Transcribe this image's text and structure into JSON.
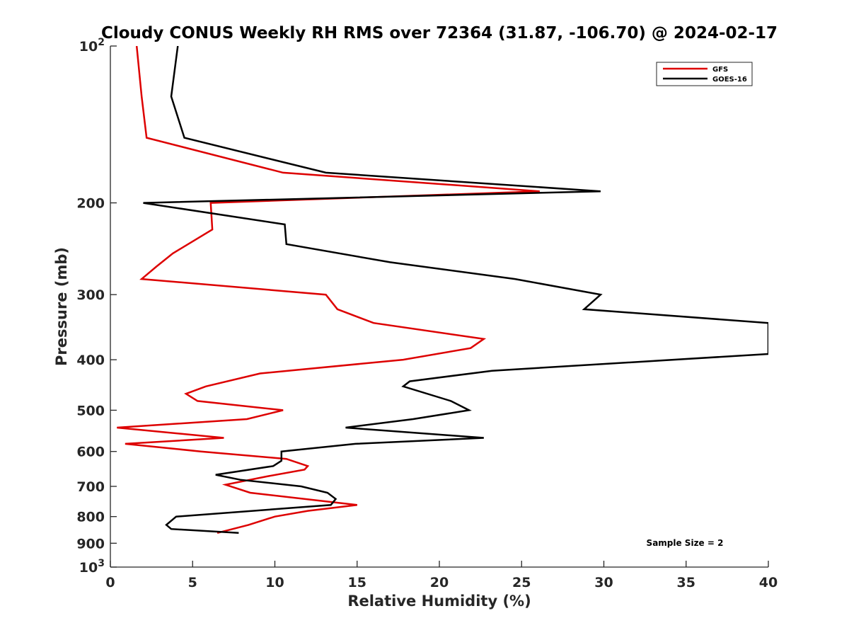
{
  "chart_data": {
    "type": "line",
    "title": "Cloudy CONUS Weekly RH RMS over 72364 (31.87, -106.70) @ 2024-02-17",
    "xlabel": "Relative Humidity (%)",
    "ylabel": "Pressure (mb)",
    "xlim": [
      0,
      40
    ],
    "ylim": [
      100,
      1000
    ],
    "y_scale": "log",
    "y_reversed": true,
    "grid": false,
    "legend_position": "top-right",
    "x_ticks": [
      "0",
      "5",
      "10",
      "15",
      "20",
      "25",
      "30",
      "35",
      "40"
    ],
    "y_ticks": [
      {
        "value": 100,
        "base": "10",
        "exp": "2"
      },
      {
        "value": 200,
        "label": "200"
      },
      {
        "value": 300,
        "label": "300"
      },
      {
        "value": 400,
        "label": "400"
      },
      {
        "value": 500,
        "label": "500"
      },
      {
        "value": 600,
        "label": "600"
      },
      {
        "value": 700,
        "label": "700"
      },
      {
        "value": 800,
        "label": "800"
      },
      {
        "value": 900,
        "label": "900"
      },
      {
        "value": 1000,
        "base": "10",
        "exp": "3"
      }
    ],
    "annotation": "Sample Size = 2",
    "series": [
      {
        "name": "GFS",
        "color": "#dd0000",
        "points": [
          [
            1.6,
            100
          ],
          [
            1.9,
            125
          ],
          [
            2.2,
            150
          ],
          [
            10.5,
            175
          ],
          [
            26.1,
            190
          ],
          [
            6.1,
            200
          ],
          [
            6.2,
            225
          ],
          [
            3.8,
            250
          ],
          [
            2.8,
            265
          ],
          [
            1.9,
            280
          ],
          [
            13.1,
            300
          ],
          [
            13.8,
            320
          ],
          [
            16.0,
            340
          ],
          [
            22.7,
            365
          ],
          [
            21.9,
            380
          ],
          [
            17.8,
            400
          ],
          [
            9.1,
            425
          ],
          [
            5.8,
            450
          ],
          [
            4.6,
            465
          ],
          [
            5.3,
            480
          ],
          [
            10.5,
            500
          ],
          [
            8.3,
            520
          ],
          [
            0.4,
            540
          ],
          [
            6.9,
            565
          ],
          [
            0.9,
            580
          ],
          [
            5.5,
            600
          ],
          [
            10.7,
            620
          ],
          [
            12.0,
            640
          ],
          [
            11.8,
            650
          ],
          [
            9.5,
            670
          ],
          [
            7.0,
            695
          ],
          [
            8.5,
            720
          ],
          [
            15.0,
            760
          ],
          [
            12.0,
            780
          ],
          [
            10.0,
            800
          ],
          [
            8.4,
            830
          ],
          [
            6.5,
            860
          ]
        ]
      },
      {
        "name": "GOES-16",
        "color": "#000000",
        "points": [
          [
            4.1,
            100
          ],
          [
            3.7,
            125
          ],
          [
            4.5,
            150
          ],
          [
            13.1,
            175
          ],
          [
            29.8,
            190
          ],
          [
            2.0,
            200
          ],
          [
            10.6,
            220
          ],
          [
            10.7,
            240
          ],
          [
            17.0,
            260
          ],
          [
            24.6,
            280
          ],
          [
            29.8,
            300
          ],
          [
            28.8,
            320
          ],
          [
            40.0,
            340
          ],
          [
            40.0,
            390
          ],
          [
            23.2,
            420
          ],
          [
            18.2,
            440
          ],
          [
            17.8,
            450
          ],
          [
            20.7,
            480
          ],
          [
            21.8,
            500
          ],
          [
            18.4,
            520
          ],
          [
            14.3,
            540
          ],
          [
            22.7,
            565
          ],
          [
            14.9,
            580
          ],
          [
            10.4,
            600
          ],
          [
            10.4,
            625
          ],
          [
            9.9,
            640
          ],
          [
            6.4,
            665
          ],
          [
            7.9,
            680
          ],
          [
            11.6,
            700
          ],
          [
            13.2,
            720
          ],
          [
            13.7,
            740
          ],
          [
            13.4,
            760
          ],
          [
            4.0,
            800
          ],
          [
            3.4,
            830
          ],
          [
            3.7,
            845
          ],
          [
            7.8,
            860
          ]
        ]
      }
    ]
  }
}
